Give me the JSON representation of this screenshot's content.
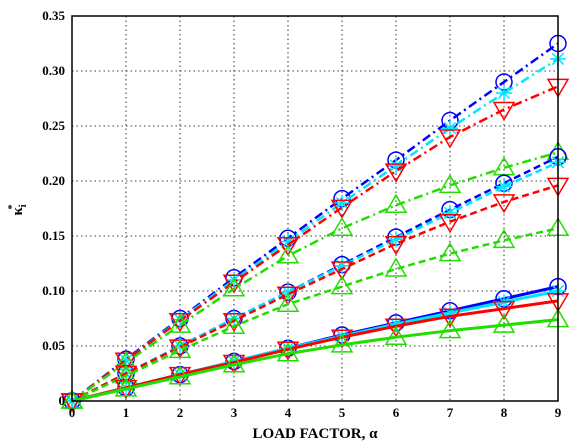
{
  "chart_data": {
    "type": "line",
    "title": "",
    "xlabel": "LOAD FACTOR, α",
    "ylabel": "κ",
    "ylabel_sup": "*",
    "ylabel_sub": "i",
    "xlim": [
      0,
      9
    ],
    "ylim": [
      0,
      0.35
    ],
    "xticks": [
      0,
      1,
      2,
      3,
      4,
      5,
      6,
      7,
      8,
      9
    ],
    "xtick_labels": [
      "0",
      "1",
      "2",
      "3",
      "4",
      "5",
      "6",
      "7",
      "8",
      "9"
    ],
    "yticks": [
      0,
      0.05,
      0.1,
      0.15,
      0.2,
      0.25,
      0.3,
      0.35
    ],
    "ytick_labels": [
      "0",
      "0.05",
      "0.10",
      "0.15",
      "0.20",
      "0.25",
      "0.30",
      "0.35"
    ],
    "grid": true,
    "x": [
      0,
      1,
      2,
      3,
      4,
      5,
      6,
      7,
      8,
      9
    ],
    "series": [
      {
        "color": "#0000ff",
        "line": "dashdot",
        "marker": "circle",
        "values": [
          0,
          0.038,
          0.075,
          0.112,
          0.148,
          0.184,
          0.219,
          0.255,
          0.29,
          0.325
        ]
      },
      {
        "color": "#00e5ff",
        "line": "dashdot",
        "marker": "star",
        "values": [
          0,
          0.037,
          0.074,
          0.11,
          0.145,
          0.18,
          0.214,
          0.248,
          0.28,
          0.311
        ]
      },
      {
        "color": "#ff0000",
        "line": "dashdot",
        "marker": "triangle-down",
        "values": [
          0,
          0.037,
          0.073,
          0.108,
          0.142,
          0.176,
          0.209,
          0.24,
          0.265,
          0.286
        ]
      },
      {
        "color": "#22dd00",
        "line": "dashdot",
        "marker": "triangle-up",
        "values": [
          0,
          0.035,
          0.069,
          0.102,
          0.132,
          0.157,
          0.178,
          0.196,
          0.212,
          0.226
        ]
      },
      {
        "color": "#0000ff",
        "line": "dashed",
        "marker": "circle",
        "values": [
          0,
          0.025,
          0.05,
          0.075,
          0.099,
          0.124,
          0.149,
          0.174,
          0.198,
          0.222
        ]
      },
      {
        "color": "#00e5ff",
        "line": "dashed",
        "marker": "star",
        "values": [
          0,
          0.025,
          0.05,
          0.075,
          0.099,
          0.123,
          0.147,
          0.171,
          0.195,
          0.217
        ]
      },
      {
        "color": "#ff0000",
        "line": "dashed",
        "marker": "triangle-down",
        "values": [
          0,
          0.025,
          0.049,
          0.073,
          0.097,
          0.12,
          0.143,
          0.163,
          0.181,
          0.196
        ]
      },
      {
        "color": "#22dd00",
        "line": "dashed",
        "marker": "triangle-up",
        "values": [
          0,
          0.023,
          0.046,
          0.068,
          0.088,
          0.104,
          0.12,
          0.134,
          0.146,
          0.157
        ]
      },
      {
        "color": "#0000ff",
        "line": "solid",
        "marker": "circle",
        "values": [
          0,
          0.012,
          0.024,
          0.036,
          0.048,
          0.06,
          0.071,
          0.082,
          0.093,
          0.104
        ]
      },
      {
        "color": "#00e5ff",
        "line": "solid",
        "marker": "star",
        "values": [
          0,
          0.012,
          0.024,
          0.036,
          0.048,
          0.059,
          0.07,
          0.08,
          0.09,
          0.1
        ]
      },
      {
        "color": "#ff0000",
        "line": "solid",
        "marker": "triangle-down",
        "values": [
          0,
          0.012,
          0.024,
          0.035,
          0.047,
          0.058,
          0.068,
          0.077,
          0.084,
          0.091
        ]
      },
      {
        "color": "#22dd00",
        "line": "solid",
        "marker": "triangle-up",
        "values": [
          0,
          0.011,
          0.022,
          0.033,
          0.043,
          0.051,
          0.058,
          0.064,
          0.069,
          0.074
        ]
      }
    ]
  }
}
